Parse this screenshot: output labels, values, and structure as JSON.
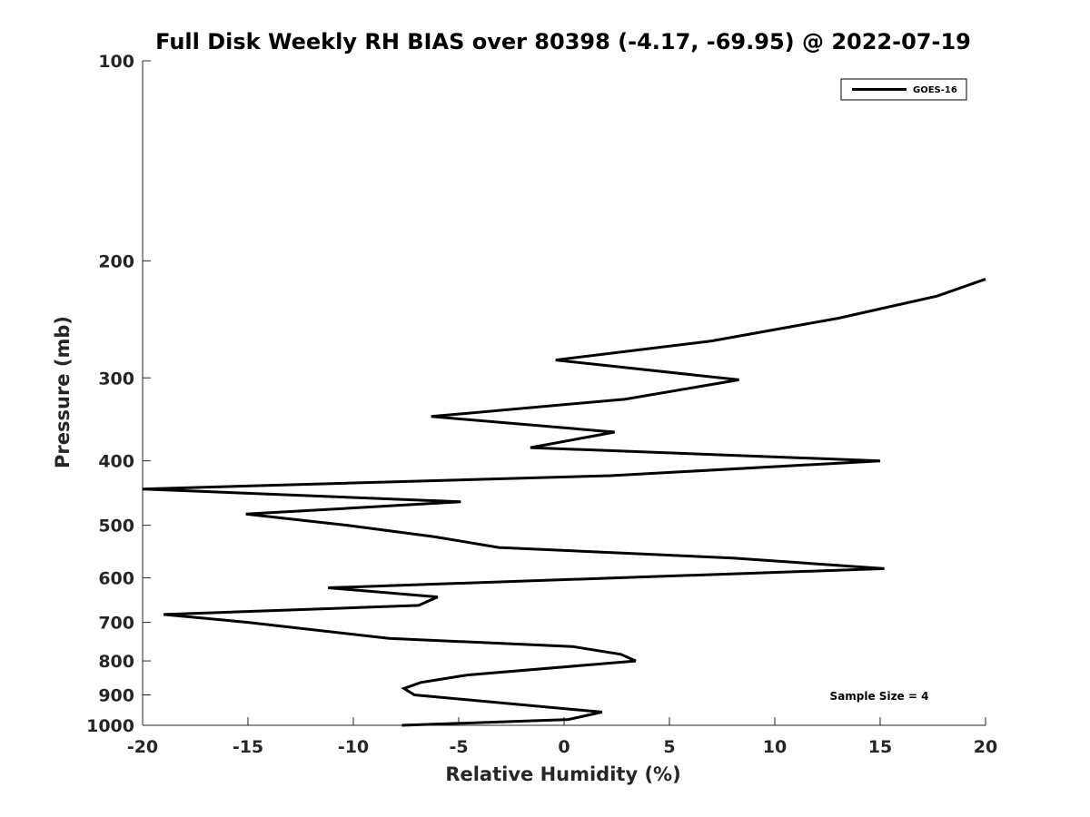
{
  "chart_data": {
    "type": "line",
    "title": "Full Disk Weekly RH BIAS over 80398 (-4.17, -69.95) @ 2022-07-19",
    "xlabel": "Relative Humidity (%)",
    "ylabel": "Pressure (mb)",
    "xlim": [
      -20,
      20
    ],
    "ylim": [
      1000,
      100
    ],
    "yscale": "log",
    "grid": false,
    "legend_position": "top-right",
    "x_ticks": [
      -20,
      -15,
      -10,
      -5,
      0,
      5,
      10,
      15,
      20
    ],
    "x_tick_labels": [
      "-20",
      "-15",
      "-10",
      "-5",
      "0",
      "5",
      "10",
      "15",
      "20"
    ],
    "y_ticks": [
      100,
      200,
      300,
      400,
      500,
      600,
      700,
      800,
      900,
      1000
    ],
    "y_tick_labels": [
      "100",
      "200",
      "300",
      "400",
      "500",
      "600",
      "700",
      "800",
      "900",
      "1000"
    ],
    "annotation": "Sample Size = 4",
    "line_color": "#000000",
    "series": [
      {
        "name": "GOES-16",
        "points": [
          {
            "x": 20.0,
            "y": 213
          },
          {
            "x": 17.7,
            "y": 226
          },
          {
            "x": 13.0,
            "y": 244
          },
          {
            "x": 7.0,
            "y": 264
          },
          {
            "x": -0.4,
            "y": 282
          },
          {
            "x": 8.3,
            "y": 302
          },
          {
            "x": 2.9,
            "y": 323
          },
          {
            "x": -6.3,
            "y": 343
          },
          {
            "x": 2.4,
            "y": 362
          },
          {
            "x": -1.6,
            "y": 382
          },
          {
            "x": 15.0,
            "y": 400
          },
          {
            "x": 2.2,
            "y": 421
          },
          {
            "x": -20.0,
            "y": 441
          },
          {
            "x": -4.9,
            "y": 461
          },
          {
            "x": -15.1,
            "y": 481
          },
          {
            "x": -10.3,
            "y": 500
          },
          {
            "x": -6.2,
            "y": 520
          },
          {
            "x": -3.1,
            "y": 540
          },
          {
            "x": 8.0,
            "y": 560
          },
          {
            "x": 15.2,
            "y": 581
          },
          {
            "x": -11.2,
            "y": 621
          },
          {
            "x": -6.0,
            "y": 641
          },
          {
            "x": -6.9,
            "y": 660
          },
          {
            "x": -19.0,
            "y": 681
          },
          {
            "x": -15.0,
            "y": 700
          },
          {
            "x": -8.3,
            "y": 740
          },
          {
            "x": 0.4,
            "y": 761
          },
          {
            "x": 2.7,
            "y": 782
          },
          {
            "x": 3.4,
            "y": 800
          },
          {
            "x": -4.6,
            "y": 840
          },
          {
            "x": -6.8,
            "y": 862
          },
          {
            "x": -7.6,
            "y": 880
          },
          {
            "x": -7.1,
            "y": 900
          },
          {
            "x": 1.8,
            "y": 955
          },
          {
            "x": 0.2,
            "y": 980
          },
          {
            "x": -7.7,
            "y": 1000
          }
        ]
      }
    ]
  }
}
